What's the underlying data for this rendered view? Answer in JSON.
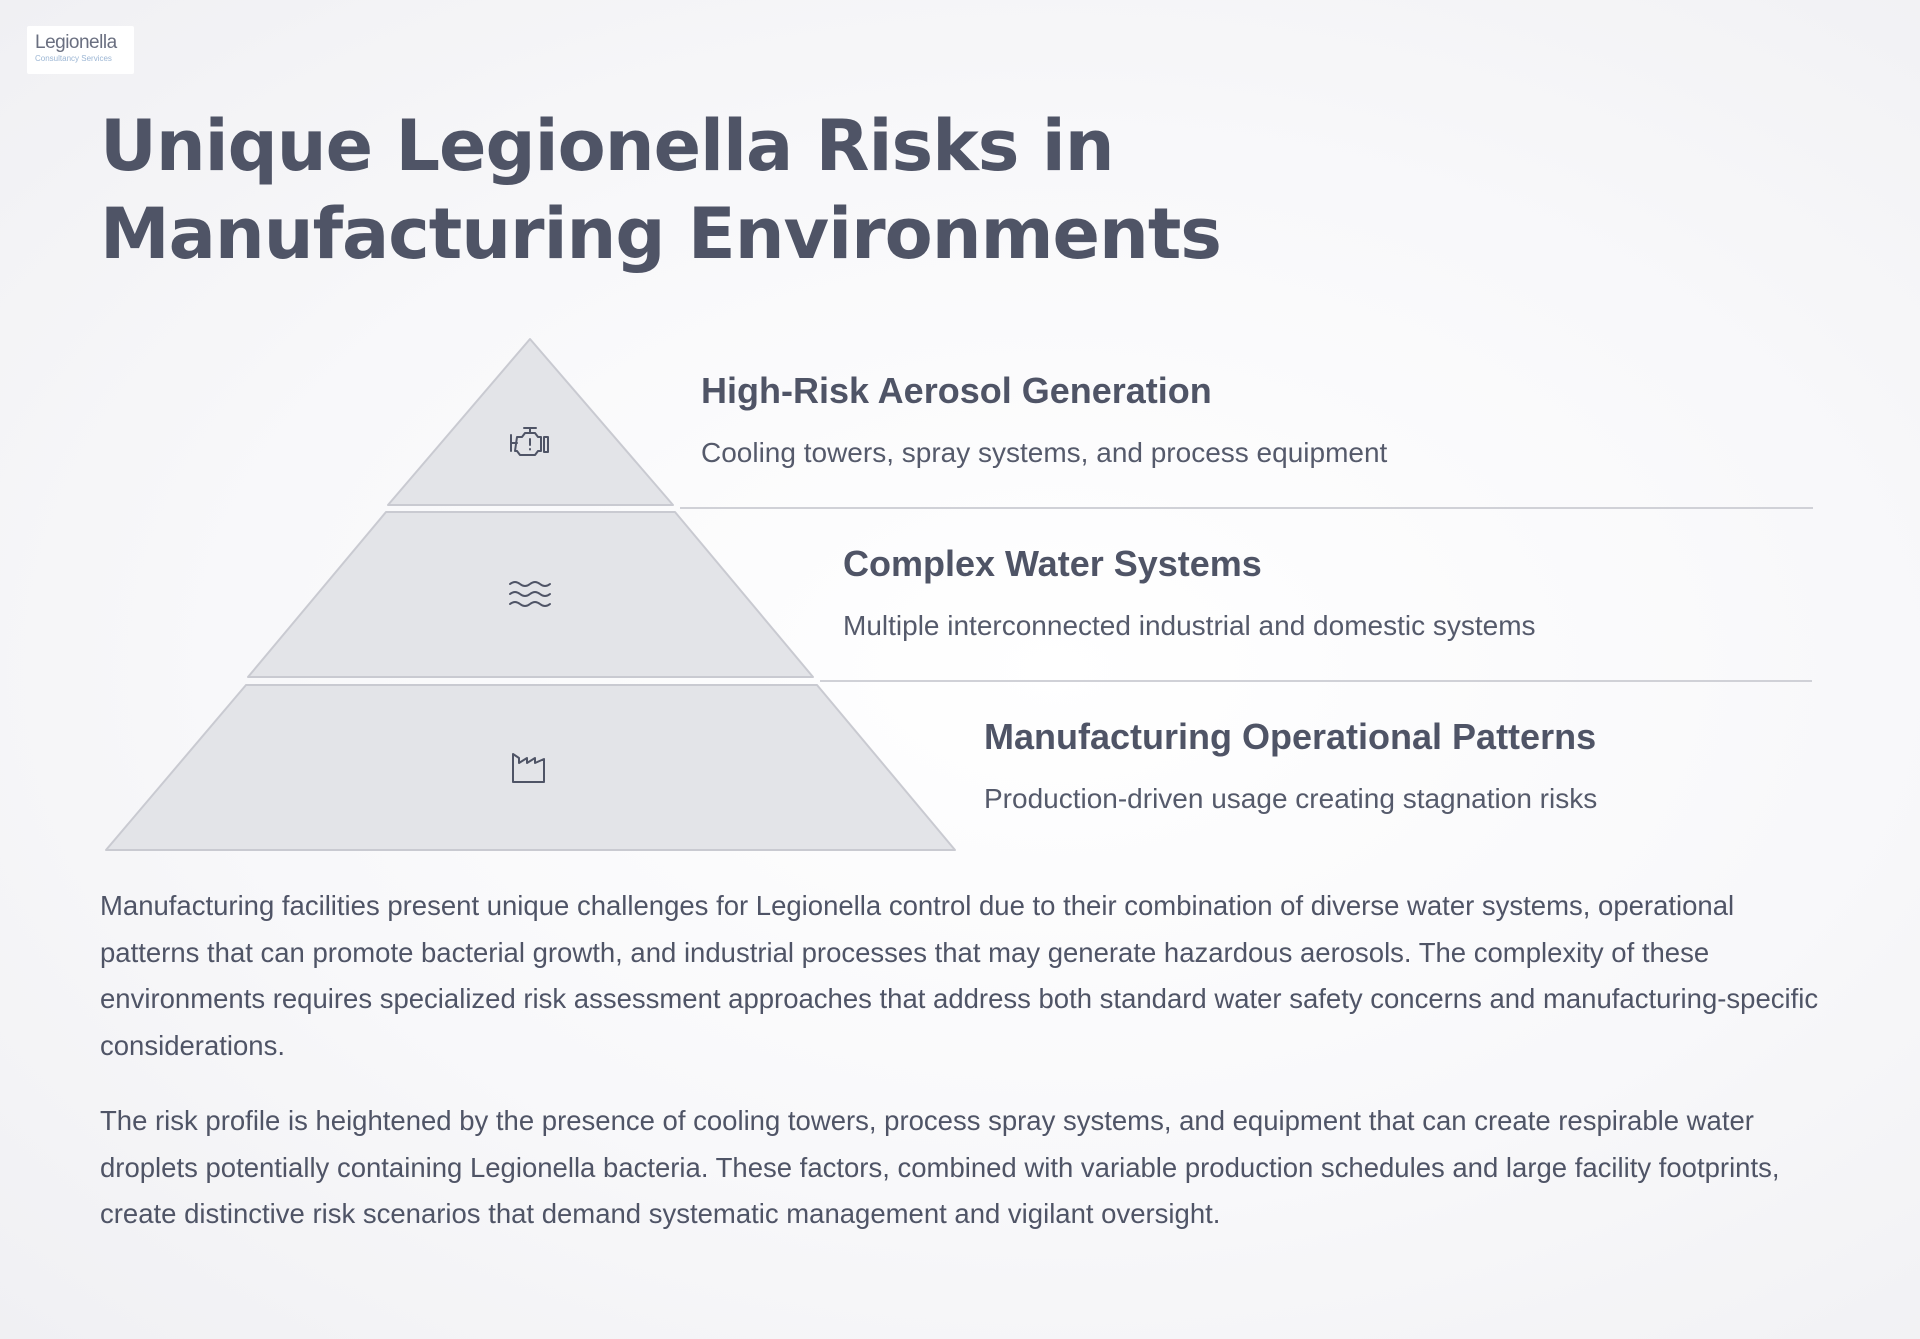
{
  "logo": {
    "name": "Legionella",
    "subtitle": "Consultancy Services"
  },
  "title": "Unique Legionella Risks in Manufacturing Environments",
  "tiers": [
    {
      "icon": "engine-warning-icon",
      "heading": "High-Risk Aerosol Generation",
      "description": "Cooling towers, spray systems, and process equipment"
    },
    {
      "icon": "waves-icon",
      "heading": "Complex Water Systems",
      "description": "Multiple interconnected industrial and domestic systems"
    },
    {
      "icon": "factory-icon",
      "heading": "Manufacturing Operational Patterns",
      "description": "Production-driven usage creating stagnation risks"
    }
  ],
  "paragraphs": [
    "Manufacturing facilities present unique challenges for Legionella control due to their combination of diverse water systems, operational patterns that can promote bacterial growth, and industrial processes that may generate hazardous aerosols. The complexity of these environments requires specialized risk assessment approaches that address both standard water safety concerns and manufacturing-specific considerations.",
    "The risk profile is heightened by the presence of cooling towers, process spray systems, and equipment that can create respirable water droplets potentially containing Legionella bacteria. These factors, combined with variable production schedules and large facility footprints, create distinctive risk scenarios that demand systematic management and vigilant oversight."
  ],
  "colors": {
    "text": "#4f5466",
    "tier_fill": "#e3e4e8",
    "tier_stroke": "#c9cad1",
    "divider": "#d0d1d7"
  }
}
